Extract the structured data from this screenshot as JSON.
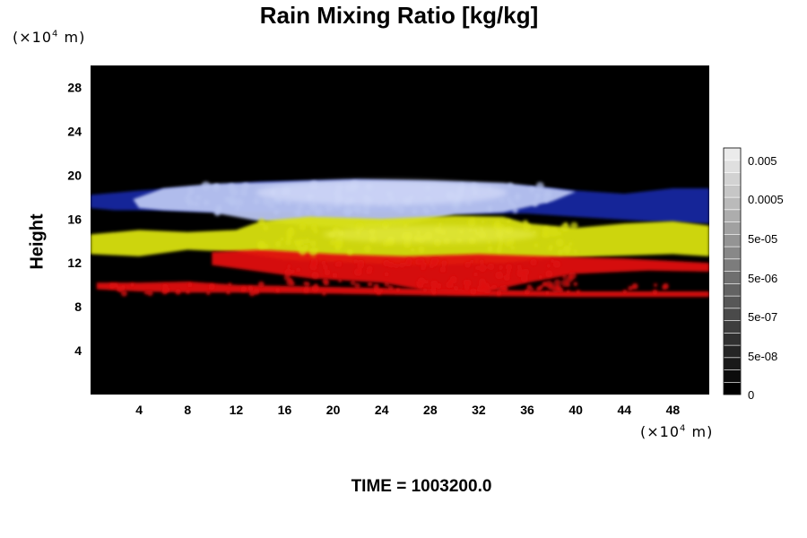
{
  "chart_data": {
    "type": "heatmap",
    "title": "Rain Mixing Ratio [kg/kg]",
    "ylabel": "Height",
    "xlabel": "",
    "x_unit_prefix": "(×10",
    "x_unit_exp": "4",
    "x_unit_suffix": " m)",
    "y_unit_prefix": "(×10",
    "y_unit_exp": "4",
    "y_unit_suffix": " m)",
    "xlim": [
      0,
      51
    ],
    "ylim": [
      0,
      30
    ],
    "x_ticks": [
      4,
      8,
      12,
      16,
      20,
      24,
      28,
      32,
      36,
      40,
      44,
      48
    ],
    "y_ticks": [
      4,
      8,
      12,
      16,
      20,
      24,
      28
    ],
    "background": "#000000",
    "layers": [
      {
        "name": "red",
        "color": "#e01010",
        "y_range": [
          9,
          12.5
        ]
      },
      {
        "name": "yellow",
        "color": "#d8e010",
        "y_range": [
          12.5,
          15.5
        ]
      },
      {
        "name": "light-blue",
        "color": "#b8c4f0",
        "y_range": [
          15.5,
          19.5
        ]
      },
      {
        "name": "blue",
        "color": "#1a2aa8",
        "y_range": [
          15,
          19
        ]
      }
    ],
    "colorbar": {
      "ticks": [
        "0.005",
        "0.0005",
        "5e-05",
        "5e-06",
        "5e-07",
        "5e-08",
        "0"
      ]
    },
    "footer": "TIME = 1003200.0"
  }
}
